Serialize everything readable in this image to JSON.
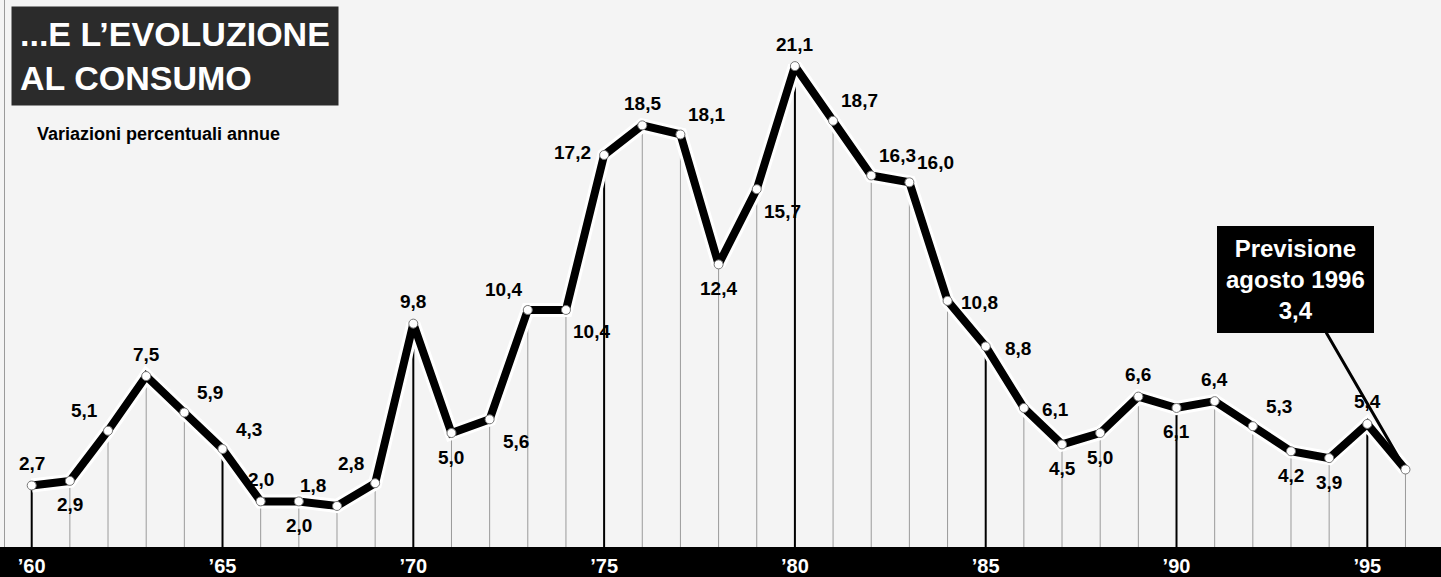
{
  "chart_data": {
    "type": "line",
    "title": "...E L’EVOLUZIONE AL CONSUMO",
    "subtitle": "Variazioni percentuali annue",
    "x": [
      1960,
      1961,
      1962,
      1963,
      1964,
      1965,
      1966,
      1967,
      1968,
      1969,
      1970,
      1971,
      1972,
      1973,
      1974,
      1975,
      1976,
      1977,
      1978,
      1979,
      1980,
      1981,
      1982,
      1983,
      1984,
      1985,
      1986,
      1987,
      1988,
      1989,
      1990,
      1991,
      1992,
      1993,
      1994,
      1995,
      1996
    ],
    "values": [
      2.7,
      2.9,
      5.1,
      7.5,
      5.9,
      4.3,
      2.0,
      2.0,
      1.8,
      2.8,
      9.8,
      5.0,
      5.6,
      10.4,
      10.4,
      17.2,
      18.5,
      18.1,
      12.4,
      15.7,
      21.1,
      18.7,
      16.3,
      16.0,
      10.8,
      8.8,
      6.1,
      4.5,
      5.0,
      6.6,
      6.1,
      6.4,
      5.3,
      4.2,
      3.9,
      5.4,
      3.4
    ],
    "value_labels": [
      "2,7",
      "2,9",
      "5,1",
      "7,5",
      "5,9",
      "4,3",
      "2,0",
      "2,0",
      "1,8",
      "2,8",
      "9,8",
      "5,0",
      "5,6",
      "10,4",
      "10,4",
      "17,2",
      "18,5",
      "18,1",
      "12,4",
      "15,7",
      "21,1",
      "18,7",
      "16,3",
      "16,0",
      "10,8",
      "8,8",
      "6,1",
      "4,5",
      "5,0",
      "6,6",
      "6,1",
      "6,4",
      "5,3",
      "4,2",
      "3,9",
      "5,4",
      "3,4"
    ],
    "annotation": {
      "text": "Previsione agosto 1996",
      "x": 1996
    },
    "color": "#000000",
    "marker": "circle",
    "line_style": "solid",
    "data_labels": true,
    "xlim": [
      1959.3,
      1996.8
    ],
    "xticks": [
      {
        "value": 1960,
        "label": "’60"
      },
      {
        "value": 1965,
        "label": "’65"
      },
      {
        "value": 1970,
        "label": "’70"
      },
      {
        "value": 1975,
        "label": "’75"
      },
      {
        "value": 1980,
        "label": "’80"
      },
      {
        "value": 1985,
        "label": "’85"
      },
      {
        "value": 1990,
        "label": "’90"
      },
      {
        "value": 1995,
        "label": "’95"
      }
    ],
    "ylim": [
      0,
      24
    ],
    "tick_labels": "x",
    "grid": false
  }
}
